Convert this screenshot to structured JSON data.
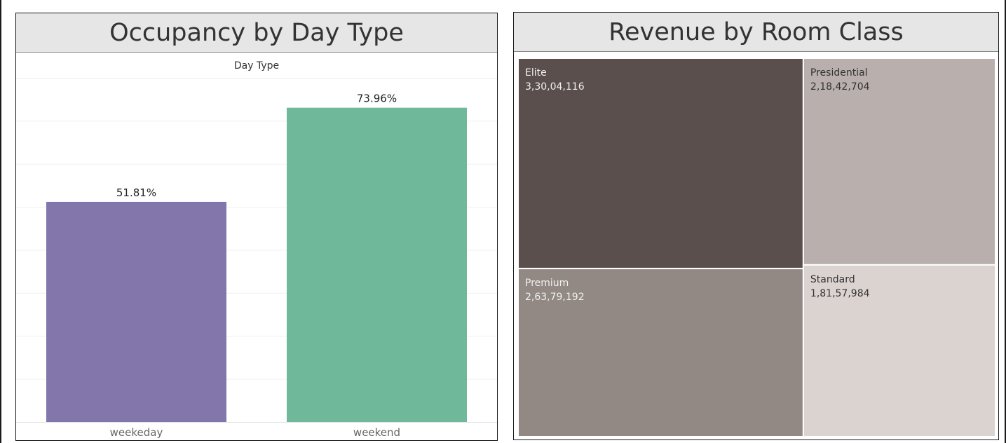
{
  "chart_data": [
    {
      "type": "bar",
      "title": "Occupancy by Day Type",
      "column_header": "Day Type",
      "categories": [
        "weekeday",
        "weekend"
      ],
      "values": [
        51.81,
        73.96
      ],
      "value_labels": [
        "51.81%",
        "73.96%"
      ],
      "colors": [
        "#8376aa",
        "#70b89a"
      ],
      "ylim": [
        0,
        81
      ],
      "grid": "horizontal"
    },
    {
      "type": "treemap",
      "title": "Revenue by Room Class",
      "categories": [
        "Elite",
        "Presidential",
        "Premium",
        "Standard"
      ],
      "values": [
        33004116,
        21842704,
        26379192,
        18157984
      ],
      "value_labels": [
        "3,30,04,116",
        "2,18,42,704",
        "2,63,79,192",
        "1,81,57,984"
      ],
      "colors": [
        "#5a4f4c",
        "#b9afac",
        "#928884",
        "#dbd3d0"
      ]
    }
  ]
}
